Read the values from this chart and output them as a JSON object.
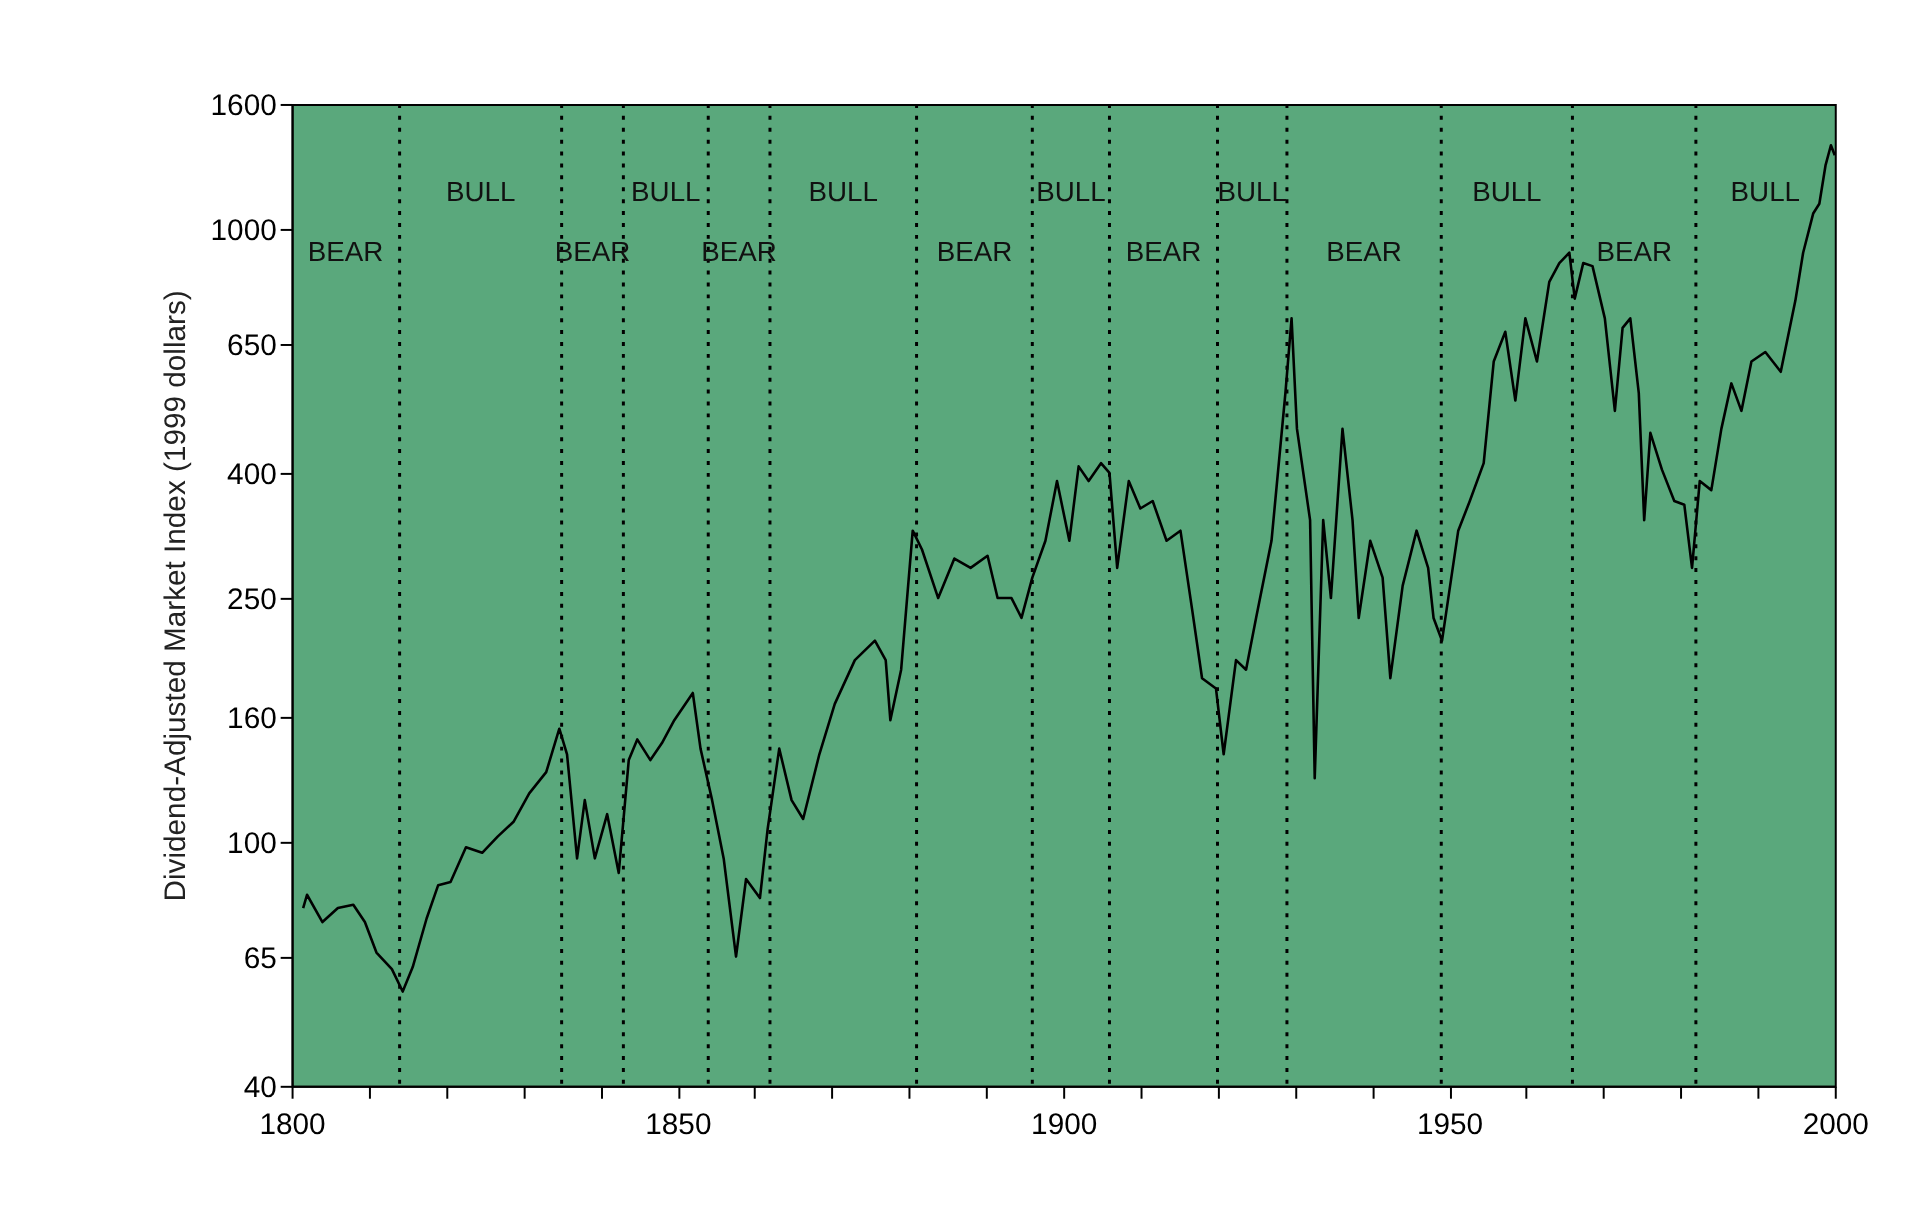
{
  "chart_data": {
    "type": "line",
    "ylabel": "Dividend-Adjusted Market Index (1999 dollars)",
    "log": "y",
    "grid": false,
    "marker": "none",
    "line_style": "solid",
    "xlim": [
      1800,
      2000
    ],
    "xticks": [
      1800,
      {
        "value": 1810,
        "label": null
      },
      {
        "value": 1820,
        "label": null
      },
      {
        "value": 1830,
        "label": null
      },
      {
        "value": 1840,
        "label": null
      },
      1850,
      {
        "value": 1860,
        "label": null
      },
      {
        "value": 1870,
        "label": null
      },
      {
        "value": 1880,
        "label": null
      },
      {
        "value": 1890,
        "label": null
      },
      1900,
      {
        "value": 1910,
        "label": null
      },
      {
        "value": 1920,
        "label": null
      },
      {
        "value": 1930,
        "label": null
      },
      {
        "value": 1940,
        "label": null
      },
      1950,
      {
        "value": 1960,
        "label": null
      },
      {
        "value": 1970,
        "label": null
      },
      {
        "value": 1980,
        "label": null
      },
      {
        "value": 1990,
        "label": null
      },
      2000
    ],
    "ylim": [
      40,
      1600
    ],
    "yticks": [
      40,
      65,
      100,
      160,
      250,
      400,
      650,
      1000,
      1600
    ],
    "series": [
      {
        "color": "#000000",
        "x": [
          1801.5,
          1802,
          1804,
          1806,
          1808,
          1809.5,
          1811,
          1813,
          1814.4,
          1815.7,
          1817.5,
          1819,
          1820.6,
          1822.6,
          1824.7,
          1826.7,
          1828.8,
          1830.8,
          1833,
          1834.7,
          1835.7,
          1837,
          1838,
          1839.3,
          1840.9,
          1842.4,
          1843.7,
          1844.8,
          1846.5,
          1848,
          1849.6,
          1852,
          1853,
          1854.5,
          1856,
          1857.6,
          1858.9,
          1860.7,
          1861.7,
          1863.2,
          1864.8,
          1866.3,
          1868.4,
          1870.4,
          1873,
          1875.6,
          1877,
          1877.6,
          1879,
          1880.5,
          1881.7,
          1883.8,
          1885.9,
          1888,
          1890.2,
          1891.5,
          1893.3,
          1894.6,
          1896,
          1897.7,
          1899.2,
          1900.8,
          1902,
          1903.3,
          1904.9,
          1906,
          1907,
          1908.5,
          1910,
          1911.6,
          1913.4,
          1915.2,
          1916.7,
          1918,
          1919.8,
          1920.8,
          1922.4,
          1923.7,
          1925,
          1927,
          1928.8,
          1929.6,
          1930.3,
          1932,
          1932.6,
          1933.7,
          1934.7,
          1936.2,
          1937.5,
          1938.3,
          1939.8,
          1941.4,
          1942.4,
          1944,
          1945.8,
          1947.3,
          1948,
          1949.1,
          1951.2,
          1952.7,
          1954.5,
          1955.8,
          1957.3,
          1958.6,
          1959.9,
          1961.4,
          1963,
          1964.3,
          1965.6,
          1966.3,
          1967.4,
          1968.6,
          1970.2,
          1971.5,
          1972.5,
          1973.5,
          1974.6,
          1975.3,
          1976.1,
          1977.6,
          1979.2,
          1980.5,
          1981.5,
          1982.5,
          1984,
          1985.3,
          1986.6,
          1987.9,
          1989.2,
          1991,
          1993,
          1994.9,
          1995.9,
          1997.2,
          1998,
          1998.8,
          1999.5,
          2000
        ],
        "values": [
          78,
          82,
          74,
          78,
          79,
          74,
          66,
          62,
          57,
          62.5,
          75,
          85,
          86,
          98,
          96,
          102,
          108,
          120,
          130,
          153,
          139,
          94,
          117,
          94,
          111,
          89,
          136,
          147,
          136,
          145,
          158,
          175,
          142,
          117,
          94,
          65,
          87,
          81,
          105,
          142,
          117,
          109,
          139,
          168,
          198,
          213,
          198,
          158,
          191,
          322,
          300,
          250,
          290,
          280,
          293,
          250,
          250,
          232,
          270,
          310,
          388,
          310,
          410,
          388,
          415,
          400,
          280,
          388,
          350,
          360,
          310,
          322,
          240,
          185,
          178,
          139,
          198,
          191,
          232,
          310,
          540,
          715,
          472,
          335,
          127,
          335,
          250,
          472,
          335,
          232,
          310,
          270,
          185,
          262,
          322,
          280,
          232,
          213,
          322,
          360,
          415,
          608,
          680,
          525,
          715,
          608,
          820,
          880,
          915,
          770,
          880,
          870,
          715,
          505,
          690,
          715,
          540,
          335,
          465,
          405,
          360,
          355,
          280,
          388,
          375,
          472,
          560,
          505,
          608,
          630,
          585,
          765,
          915,
          1060,
          1100,
          1270,
          1370,
          1320
        ]
      }
    ],
    "ref_lines": [
      {
        "axis": "x",
        "value": 1814,
        "color": "#000000",
        "line_style": "dotted"
      },
      {
        "axis": "x",
        "value": 1835,
        "color": "#000000",
        "line_style": "dotted"
      },
      {
        "axis": "x",
        "value": 1843,
        "color": "#000000",
        "line_style": "dotted"
      },
      {
        "axis": "x",
        "value": 1854,
        "color": "#000000",
        "line_style": "dotted"
      },
      {
        "axis": "x",
        "value": 1862,
        "color": "#000000",
        "line_style": "dotted"
      },
      {
        "axis": "x",
        "value": 1881,
        "color": "#000000",
        "line_style": "dotted"
      },
      {
        "axis": "x",
        "value": 1896,
        "color": "#000000",
        "line_style": "dotted"
      },
      {
        "axis": "x",
        "value": 1906,
        "color": "#000000",
        "line_style": "dotted"
      },
      {
        "axis": "x",
        "value": 1920,
        "color": "#000000",
        "line_style": "dotted"
      },
      {
        "axis": "x",
        "value": 1929,
        "color": "#000000",
        "line_style": "dotted"
      },
      {
        "axis": "x",
        "value": 1949,
        "color": "#000000",
        "line_style": "dotted"
      },
      {
        "axis": "x",
        "value": 1966,
        "color": "#000000",
        "line_style": "dotted"
      },
      {
        "axis": "x",
        "value": 1982,
        "color": "#000000",
        "line_style": "dotted"
      }
    ],
    "annotations": [
      "BEAR",
      "BULL",
      "BEAR",
      "BULL",
      "BEAR",
      "BULL",
      "BEAR",
      "BULL",
      "BEAR",
      "BULL",
      "BEAR",
      "BULL",
      "BEAR",
      "BULL"
    ]
  }
}
